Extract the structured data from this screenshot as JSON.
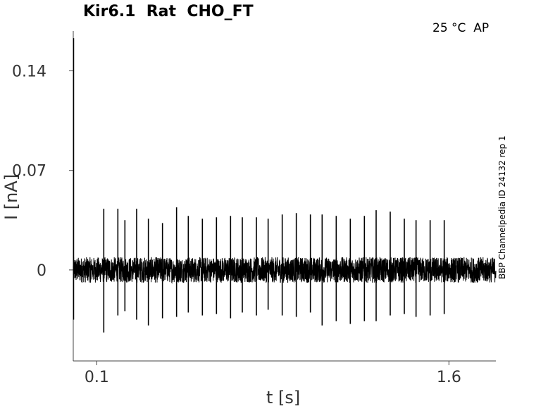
{
  "chart_data": {
    "type": "line",
    "title": "Kir6.1  Rat  CHO_FT",
    "annotation": "25 °C  AP",
    "side_label": "BBP Channelpedia ID 24132 rep 1",
    "xlabel": "t [s]",
    "ylabel": "I [nA]",
    "x_ticks": [
      0.1,
      1.6
    ],
    "x_tick_labels": [
      "0.1",
      "1.6"
    ],
    "y_ticks": [
      0,
      0.07,
      0.14
    ],
    "y_tick_labels": [
      "0",
      "0.07",
      "0.14"
    ],
    "xlim": [
      0.0,
      1.8
    ],
    "ylim": [
      -0.064,
      0.168
    ],
    "grid": false,
    "noise_band_nA": 0.009,
    "spike_times_s": [
      0.13,
      0.19,
      0.22,
      0.27,
      0.32,
      0.38,
      0.44,
      0.49,
      0.55,
      0.61,
      0.67,
      0.72,
      0.78,
      0.83,
      0.89,
      0.95,
      1.01,
      1.06,
      1.12,
      1.18,
      1.24,
      1.29,
      1.35,
      1.41,
      1.46,
      1.52,
      1.58
    ],
    "spike_peaks_nA": [
      0.043,
      0.043,
      0.035,
      0.043,
      0.036,
      0.033,
      0.044,
      0.038,
      0.036,
      0.037,
      0.038,
      0.037,
      0.037,
      0.036,
      0.039,
      0.04,
      0.039,
      0.039,
      0.038,
      0.036,
      0.038,
      0.042,
      0.041,
      0.036,
      0.035,
      0.035,
      0.035
    ],
    "spike_troughs_nA": [
      -0.044,
      -0.032,
      -0.029,
      -0.035,
      -0.039,
      -0.034,
      -0.033,
      -0.03,
      -0.032,
      -0.031,
      -0.034,
      -0.03,
      -0.032,
      -0.028,
      -0.032,
      -0.033,
      -0.03,
      -0.039,
      -0.036,
      -0.038,
      -0.036,
      -0.036,
      -0.032,
      -0.031,
      -0.033,
      -0.032,
      -0.031
    ],
    "initial_transient": {
      "t": 0.0,
      "peak_nA": 0.163,
      "trough_nA": -0.035
    },
    "series": [
      {
        "color": "#000000"
      }
    ]
  }
}
